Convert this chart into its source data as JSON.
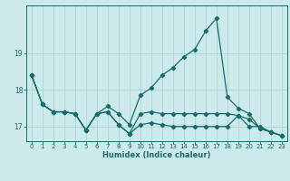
{
  "xlabel": "Humidex (Indice chaleur)",
  "bg_color": "#cceaea",
  "grid_color": "#afd4d4",
  "line_color": "#1a6b6b",
  "x": [
    0,
    1,
    2,
    3,
    4,
    5,
    6,
    7,
    8,
    9,
    10,
    11,
    12,
    13,
    14,
    15,
    16,
    17,
    18,
    19,
    20,
    21,
    22,
    23
  ],
  "line1": [
    18.4,
    17.6,
    17.4,
    17.4,
    17.35,
    16.9,
    17.35,
    17.55,
    17.35,
    17.05,
    17.85,
    18.05,
    18.4,
    18.6,
    18.9,
    19.1,
    19.6,
    19.95,
    17.8,
    17.5,
    17.35,
    16.95,
    16.85,
    16.75
  ],
  "line2": [
    18.4,
    17.6,
    17.4,
    17.4,
    17.35,
    16.9,
    17.35,
    17.4,
    17.05,
    16.8,
    17.05,
    17.1,
    17.05,
    17.0,
    17.0,
    17.0,
    17.0,
    17.0,
    17.0,
    17.3,
    17.0,
    17.0,
    16.85,
    16.75
  ],
  "line3": [
    18.4,
    17.6,
    17.4,
    17.4,
    17.35,
    16.9,
    17.35,
    17.4,
    17.05,
    16.8,
    17.35,
    17.4,
    17.35,
    17.35,
    17.35,
    17.35,
    17.35,
    17.35,
    17.35,
    17.3,
    17.2,
    16.95,
    16.85,
    16.75
  ],
  "ylim": [
    16.6,
    20.3
  ],
  "yticks": [
    17,
    18,
    19
  ],
  "xticks": [
    0,
    1,
    2,
    3,
    4,
    5,
    6,
    7,
    8,
    9,
    10,
    11,
    12,
    13,
    14,
    15,
    16,
    17,
    18,
    19,
    20,
    21,
    22,
    23
  ]
}
